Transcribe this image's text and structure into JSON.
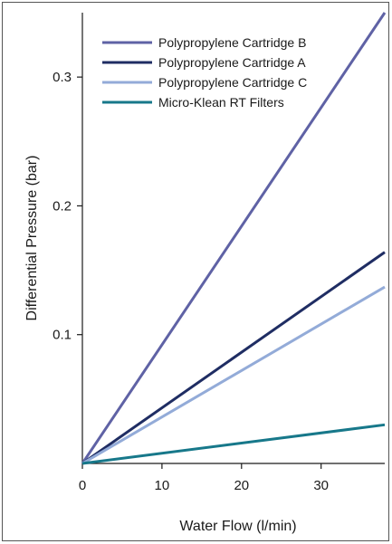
{
  "chart_data": {
    "type": "line",
    "title": "",
    "xlabel": "Water Flow (l/min)",
    "ylabel": "Differential Pressure (bar)",
    "xlim": [
      0,
      38
    ],
    "ylim": [
      0,
      0.35
    ],
    "x_ticks": [
      0,
      10,
      20,
      30
    ],
    "x_tick_labels": [
      "0",
      "10",
      "20",
      "30"
    ],
    "y_ticks": [
      0.1,
      0.2,
      0.3
    ],
    "y_tick_labels": [
      "0.1",
      "0.2",
      "0.3"
    ],
    "grid": false,
    "legend_position": "top-left",
    "series": [
      {
        "name": "Polypropylene Cartridge B",
        "color": "#5f62a5",
        "x": [
          0,
          38
        ],
        "y": [
          0,
          0.35
        ]
      },
      {
        "name": "Polypropylene Cartridge A",
        "color": "#1f2d63",
        "x": [
          0,
          38
        ],
        "y": [
          0,
          0.164
        ]
      },
      {
        "name": "Polypropylene Cartridge C",
        "color": "#93abd8",
        "x": [
          0,
          38
        ],
        "y": [
          0,
          0.137
        ]
      },
      {
        "name": "Micro-Klean RT Filters",
        "color": "#17788a",
        "x": [
          0,
          38
        ],
        "y": [
          0,
          0.03
        ]
      }
    ]
  }
}
